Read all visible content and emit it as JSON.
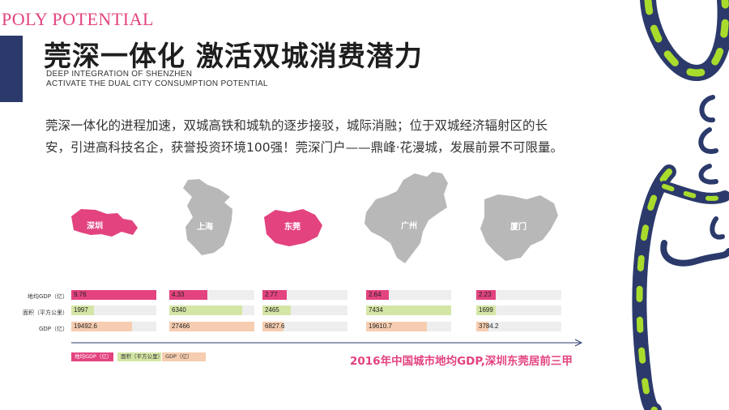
{
  "brand": "POLY POTENTIAL",
  "header": {
    "title": "莞深一体化  激活双城消费潜力",
    "subtitle_line1": "DEEP INTEGRATION OF SHENZHEN",
    "subtitle_line2": "ACTIVATE THE DUAL CITY CONSUMPTION POTENTIAL"
  },
  "intro": "莞深一体化的进程加速，双城高铁和城轨的逐步接驳，城际消融；位于双城经济辐射区的长安，引进高科技名企，获誉投资环境100强！莞深门户——鼎峰·花漫城，发展前景不可限量。",
  "colors": {
    "accent": "#e3437f",
    "gray_map": "#b8b8b8",
    "gdp_per_area": "#e3437f",
    "area": "#d4e6a6",
    "gdp": "#f6cdb0",
    "track": "#eeeeee",
    "navy": "#2b3a6b",
    "lime": "#a8dc2c"
  },
  "chart_data": {
    "type": "bar",
    "categories": [
      "深圳",
      "上海",
      "东莞",
      "广州",
      "厦门"
    ],
    "highlighted": [
      "深圳",
      "东莞"
    ],
    "series": [
      {
        "name": "地均GDP（亿）",
        "row_label": "地均GDP（亿）",
        "values": [
          9.76,
          4.33,
          2.77,
          2.64,
          2.23
        ],
        "color": "#e3437f"
      },
      {
        "name": "面积（平方公里）",
        "row_label": "面积（平方公里）",
        "values": [
          1997,
          6340,
          2465,
          7434,
          1699
        ],
        "color": "#d4e6a6"
      },
      {
        "name": "GDP（亿）",
        "row_label": "GDP（亿）",
        "values": [
          19492.6,
          27466,
          6827.6,
          19610.7,
          3784.2
        ],
        "color": "#f6cdb0"
      }
    ],
    "value_labels": [
      [
        "9.76",
        "4.33",
        "2.77",
        "2.64",
        "2.23"
      ],
      [
        "1997",
        "6340",
        "2465",
        "7434",
        "1699"
      ],
      [
        "19492.6",
        "27466",
        "6827.6",
        "19610.7",
        "3784.2"
      ]
    ],
    "legend_position": "bottom-left",
    "caption": "2016年中国城市地均GDP,深圳东莞居前三甲"
  }
}
